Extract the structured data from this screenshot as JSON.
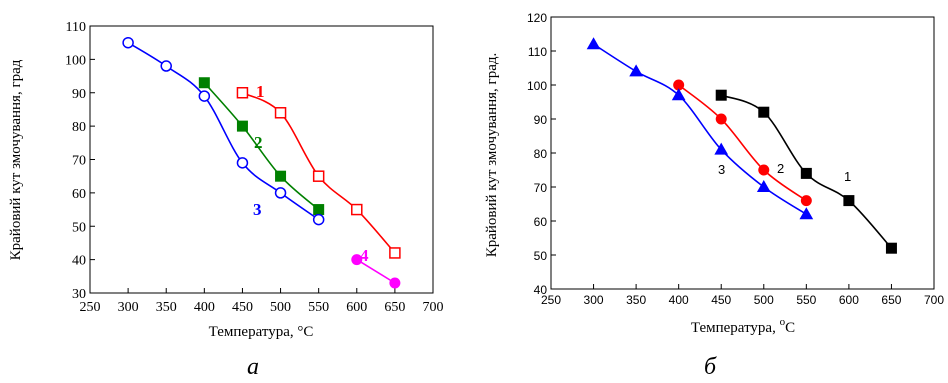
{
  "chart_data": [
    {
      "type": "line",
      "panel_letter": "а",
      "xlabel": "Температура, °С",
      "ylabel": "Крайовий кут змочування, град",
      "xlim": [
        250,
        700
      ],
      "ylim": [
        30,
        110
      ],
      "x_ticks": [
        250,
        300,
        350,
        400,
        450,
        500,
        550,
        600,
        650,
        700
      ],
      "y_ticks": [
        30,
        40,
        50,
        60,
        70,
        80,
        90,
        100,
        110
      ],
      "grid": false,
      "series": [
        {
          "name": "1",
          "color": "#ff0000",
          "marker": "open-square",
          "x": [
            450,
            500,
            550,
            600,
            650
          ],
          "y": [
            90,
            84,
            65,
            55,
            42
          ]
        },
        {
          "name": "2",
          "color": "#008000",
          "marker": "filled-square",
          "x": [
            400,
            450,
            500,
            550
          ],
          "y": [
            93,
            80,
            65,
            55
          ]
        },
        {
          "name": "3",
          "color": "#0000ff",
          "marker": "open-circle",
          "x": [
            300,
            350,
            400,
            450,
            500,
            550
          ],
          "y": [
            105,
            98,
            89,
            69,
            60,
            52
          ]
        },
        {
          "name": "4",
          "color": "#ff00ff",
          "marker": "filled-circle",
          "x": [
            600,
            650
          ],
          "y": [
            40,
            33
          ]
        }
      ]
    },
    {
      "type": "line",
      "panel_letter": "б",
      "xlabel": "Температура, ",
      "xlabel_unit_sup": "o",
      "xlabel_unit": "C",
      "ylabel": "Крайовий кут змочування, град.",
      "xlim": [
        250,
        700
      ],
      "ylim": [
        40,
        120
      ],
      "x_ticks": [
        250,
        300,
        350,
        400,
        450,
        500,
        550,
        600,
        650,
        700
      ],
      "y_ticks": [
        40,
        50,
        60,
        70,
        80,
        90,
        100,
        110,
        120
      ],
      "grid": false,
      "series": [
        {
          "name": "1",
          "color": "#000000",
          "marker": "filled-square",
          "x": [
            450,
            500,
            550,
            600,
            650
          ],
          "y": [
            97,
            92,
            74,
            66,
            52
          ]
        },
        {
          "name": "2",
          "color": "#ff0000",
          "marker": "filled-circle",
          "x": [
            400,
            450,
            500,
            550
          ],
          "y": [
            100,
            90,
            75,
            66
          ]
        },
        {
          "name": "3",
          "color": "#0000ff",
          "marker": "filled-triangle",
          "x": [
            300,
            350,
            400,
            450,
            500,
            550
          ],
          "y": [
            112,
            104,
            97,
            81,
            70,
            62
          ]
        }
      ]
    }
  ]
}
